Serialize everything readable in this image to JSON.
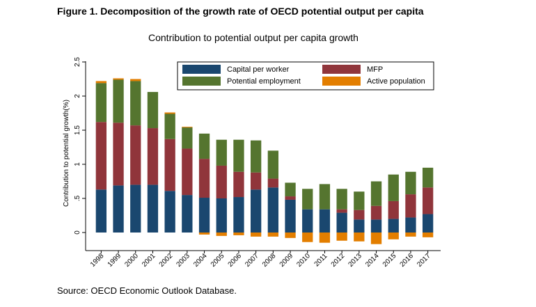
{
  "figure_title": "Figure 1.  Decomposition of the growth rate of OECD potential output per capita",
  "source": "Source: OECD Economic Outlook Database.",
  "chart_data": {
    "type": "bar",
    "stacked": true,
    "title": "Contribution to potential output per capita growth",
    "xlabel": "",
    "ylabel": "Contribution to potential growth(%)",
    "ylim": [
      -0.25,
      2.6
    ],
    "yticks": [
      0,
      0.5,
      1,
      1.5,
      2,
      2.5
    ],
    "ytick_labels": [
      "0",
      ".5",
      "1",
      "1.5",
      "2",
      "2.5"
    ],
    "grid": false,
    "legend_position": "top-right",
    "categories": [
      "1998",
      "1999",
      "2000",
      "2001",
      "2002",
      "2003",
      "2004",
      "2005",
      "2006",
      "2007",
      "2008",
      "2009",
      "2010",
      "2011",
      "2012",
      "2013",
      "2014",
      "2015",
      "2016",
      "2017"
    ],
    "series": [
      {
        "name": "Capital per worker",
        "color": "#1a476f",
        "values": [
          0.63,
          0.69,
          0.7,
          0.7,
          0.61,
          0.55,
          0.51,
          0.5,
          0.52,
          0.63,
          0.66,
          0.48,
          0.34,
          0.34,
          0.29,
          0.19,
          0.19,
          0.2,
          0.22,
          0.27
        ]
      },
      {
        "name": "MFP",
        "color": "#90353b",
        "values": [
          0.99,
          0.92,
          0.87,
          0.83,
          0.76,
          0.68,
          0.57,
          0.48,
          0.37,
          0.25,
          0.13,
          0.05,
          0.0,
          0.0,
          0.05,
          0.14,
          0.2,
          0.26,
          0.34,
          0.39
        ]
      },
      {
        "name": "Potential employment",
        "color": "#55752f",
        "values": [
          0.57,
          0.63,
          0.65,
          0.53,
          0.37,
          0.31,
          0.37,
          0.38,
          0.47,
          0.47,
          0.41,
          0.2,
          0.3,
          0.37,
          0.3,
          0.27,
          0.36,
          0.39,
          0.33,
          0.29
        ]
      },
      {
        "name": "Active population",
        "color": "#e37e00",
        "values": [
          0.03,
          0.02,
          0.03,
          0.0,
          0.02,
          0.01,
          -0.03,
          -0.05,
          -0.04,
          -0.06,
          -0.06,
          -0.08,
          -0.14,
          -0.15,
          -0.12,
          -0.13,
          -0.17,
          -0.1,
          -0.06,
          -0.07
        ]
      }
    ]
  }
}
